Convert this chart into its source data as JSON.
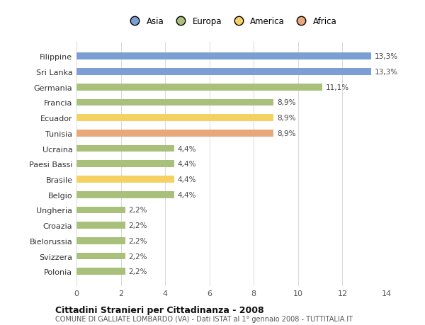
{
  "countries": [
    "Filippine",
    "Sri Lanka",
    "Germania",
    "Francia",
    "Ecuador",
    "Tunisia",
    "Ucraina",
    "Paesi Bassi",
    "Brasile",
    "Belgio",
    "Ungheria",
    "Croazia",
    "Bielorussia",
    "Svizzera",
    "Polonia"
  ],
  "values": [
    13.3,
    13.3,
    11.1,
    8.9,
    8.9,
    8.9,
    4.4,
    4.4,
    4.4,
    4.4,
    2.2,
    2.2,
    2.2,
    2.2,
    2.2
  ],
  "labels": [
    "13,3%",
    "13,3%",
    "11,1%",
    "8,9%",
    "8,9%",
    "8,9%",
    "4,4%",
    "4,4%",
    "4,4%",
    "4,4%",
    "2,2%",
    "2,2%",
    "2,2%",
    "2,2%",
    "2,2%"
  ],
  "colors": [
    "#7b9fd4",
    "#7b9fd4",
    "#a8c07a",
    "#a8c07a",
    "#f5d062",
    "#e8a87a",
    "#a8c07a",
    "#a8c07a",
    "#f5d062",
    "#a8c07a",
    "#a8c07a",
    "#a8c07a",
    "#a8c07a",
    "#a8c07a",
    "#a8c07a"
  ],
  "legend_labels": [
    "Asia",
    "Europa",
    "America",
    "Africa"
  ],
  "legend_colors": [
    "#7b9fd4",
    "#a8c07a",
    "#f5d062",
    "#e8a87a"
  ],
  "xlim": [
    0,
    14
  ],
  "xticks": [
    0,
    2,
    4,
    6,
    8,
    10,
    12,
    14
  ],
  "title": "Cittadini Stranieri per Cittadinanza - 2008",
  "subtitle": "COMUNE DI GALLIATE LOMBARDO (VA) - Dati ISTAT al 1° gennaio 2008 - TUTTITALIA.IT",
  "background_color": "#ffffff",
  "grid_color": "#d8d8d8",
  "bar_height": 0.45
}
